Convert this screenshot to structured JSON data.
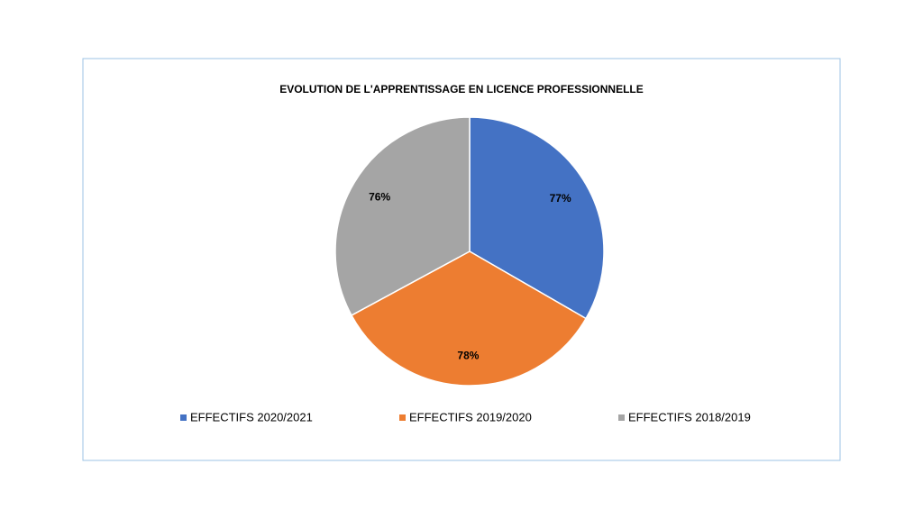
{
  "chart_data": {
    "type": "pie",
    "title": "EVOLUTION DE L'APPRENTISSAGE EN LICENCE PROFESSIONNELLE",
    "categories": [
      "EFFECTIFS 2020/2021",
      "EFFECTIFS 2019/2020",
      "EFFECTIFS 2018/2019"
    ],
    "values": [
      77,
      78,
      76
    ],
    "value_labels": [
      "77%",
      "78%",
      "76%"
    ],
    "colors": [
      "#4472c4",
      "#ed7d31",
      "#a5a5a5"
    ],
    "legend": "bottom"
  }
}
